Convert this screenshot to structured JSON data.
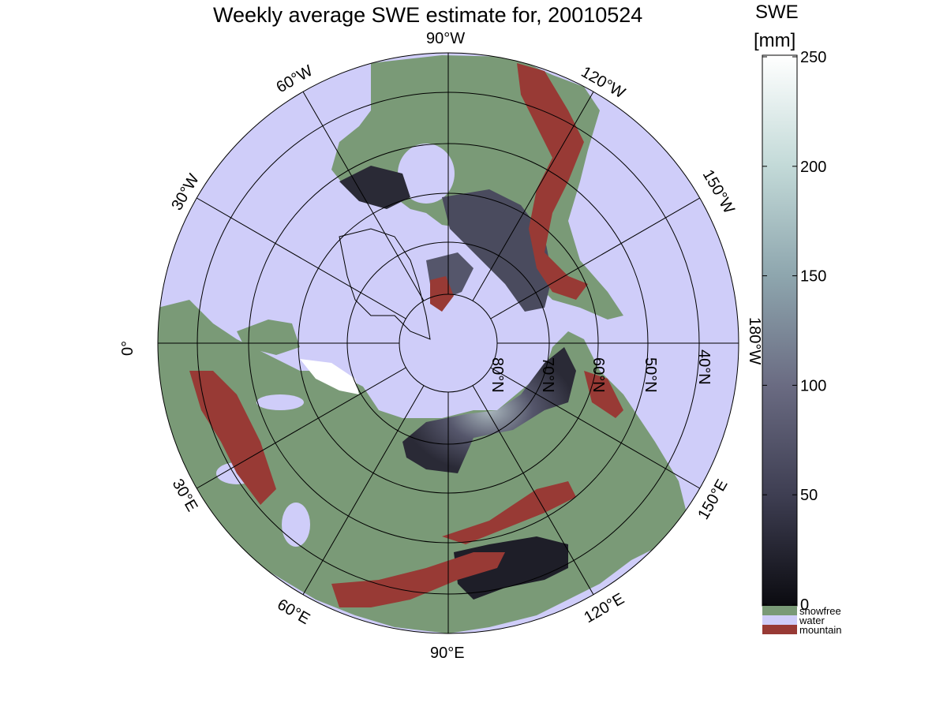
{
  "title": "Weekly average SWE estimate for, 20010524",
  "colorbar": {
    "title_line1": "SWE",
    "title_line2": "[mm]",
    "min": 0,
    "max": 250,
    "ticks": [
      "0",
      "50",
      "100",
      "150",
      "200",
      "250"
    ],
    "gradient_stops": [
      "#0b0b10",
      "#3e3e52",
      "#6a6b82",
      "#8ea6ae",
      "#c3dad8",
      "#ffffff"
    ]
  },
  "categories": [
    {
      "label": "snowfree",
      "color": "#7a9a77"
    },
    {
      "label": "water",
      "color": "#cfcdf9"
    },
    {
      "label": "mountain",
      "color": "#983a35"
    }
  ],
  "map": {
    "projection": "north polar stereographic",
    "longitude_labels": [
      "90°W",
      "120°W",
      "150°W",
      "180°W",
      "150°E",
      "120°E",
      "90°E",
      "60°E",
      "30°E",
      "0°",
      "30°W",
      "60°W"
    ],
    "latitude_labels": [
      "80°N",
      "70°N",
      "60°N",
      "50°N",
      "40°N"
    ],
    "colors": {
      "ocean": "#cfcdf9",
      "land": "#7a9a77",
      "mountain": "#983a35",
      "snow_dark": "#2a2a36",
      "snow_mid": "#55566b",
      "snow_light": "#a9b6bd",
      "ice_white": "#ffffff"
    }
  }
}
